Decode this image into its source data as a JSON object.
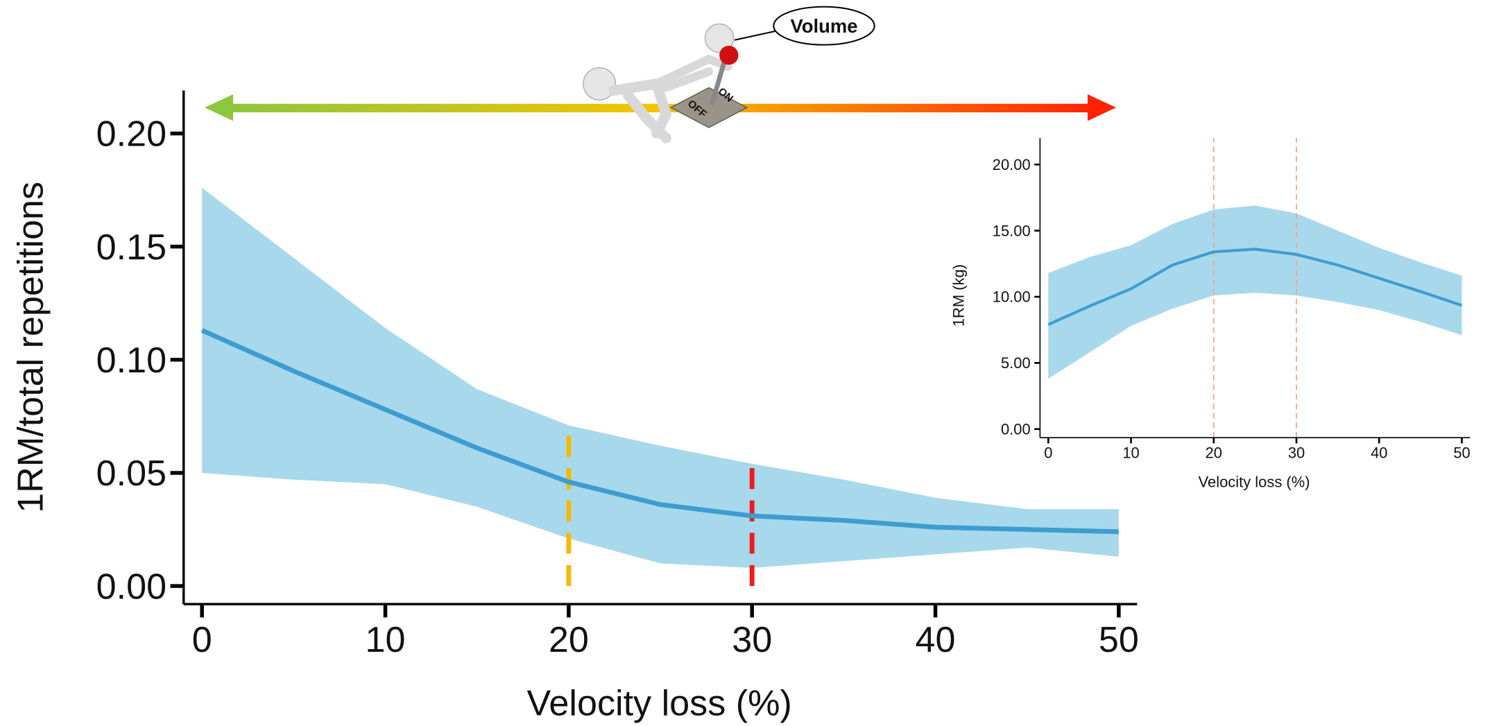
{
  "chart_data": [
    {
      "type": "line",
      "y_label": "1RM/total repetitions",
      "x_label": "Velocity loss (%)",
      "x": [
        0,
        5,
        10,
        15,
        20,
        25,
        30,
        35,
        40,
        45,
        50
      ],
      "line": {
        "color": "#3d9dd0",
        "values": [
          0.113,
          0.095,
          0.078,
          0.061,
          0.046,
          0.036,
          0.031,
          0.029,
          0.026,
          0.025,
          0.024
        ]
      },
      "band": {
        "color": "#a8d8ec",
        "upper": [
          0.176,
          0.145,
          0.114,
          0.087,
          0.071,
          0.062,
          0.054,
          0.047,
          0.039,
          0.034,
          0.034
        ],
        "lower": [
          0.05,
          0.047,
          0.045,
          0.035,
          0.021,
          0.01,
          0.008,
          0.011,
          0.014,
          0.017,
          0.013
        ]
      },
      "vlines": [
        {
          "x": 20,
          "color": "#f5b800"
        },
        {
          "x": 30,
          "color": "#ee1c1c"
        }
      ],
      "xlim": [
        -1,
        51
      ],
      "ylim": [
        -0.008,
        0.219
      ],
      "xticks": [
        0,
        10,
        20,
        30,
        40,
        50
      ],
      "yticks": [
        {
          "value": 0,
          "label": "0.00"
        },
        {
          "value": 0.05,
          "label": "0.05"
        },
        {
          "value": 0.1,
          "label": "0.10"
        },
        {
          "value": 0.15,
          "label": "0.15"
        },
        {
          "value": 0.2,
          "label": "0.20"
        }
      ]
    },
    {
      "type": "line",
      "y_label": "1RM (kg)",
      "x_label": "Velocity loss (%)",
      "x": [
        0,
        5,
        10,
        15,
        20,
        25,
        30,
        35,
        40,
        45,
        50
      ],
      "line": {
        "color": "#3d9dd0",
        "values": [
          7.9,
          9.3,
          10.6,
          12.4,
          13.4,
          13.6,
          13.2,
          12.4,
          11.4,
          10.4,
          9.35
        ]
      },
      "band": {
        "color": "#a8d8ec",
        "upper": [
          11.8,
          13.0,
          13.9,
          15.5,
          16.6,
          16.9,
          16.3,
          15.0,
          13.7,
          12.6,
          11.6
        ],
        "lower": [
          3.8,
          5.8,
          7.8,
          9.1,
          10.1,
          10.3,
          10.1,
          9.6,
          9.0,
          8.1,
          7.1
        ]
      },
      "vlines": [
        {
          "x": 20,
          "color": "#f4a582"
        },
        {
          "x": 30,
          "color": "#f4a582"
        }
      ],
      "xlim": [
        -1,
        51
      ],
      "ylim": [
        -0.65,
        22
      ],
      "xticks": [
        0,
        10,
        20,
        30,
        40,
        50
      ],
      "yticks": [
        {
          "value": 0,
          "label": "0.00"
        },
        {
          "value": 5,
          "label": "5.00"
        },
        {
          "value": 10,
          "label": "10.00"
        },
        {
          "value": 15,
          "label": "15.00"
        },
        {
          "value": 20,
          "label": "20.00"
        }
      ]
    }
  ],
  "illustration": {
    "bubble": "Volume",
    "switch_on": "ON",
    "switch_off": "OFF"
  }
}
